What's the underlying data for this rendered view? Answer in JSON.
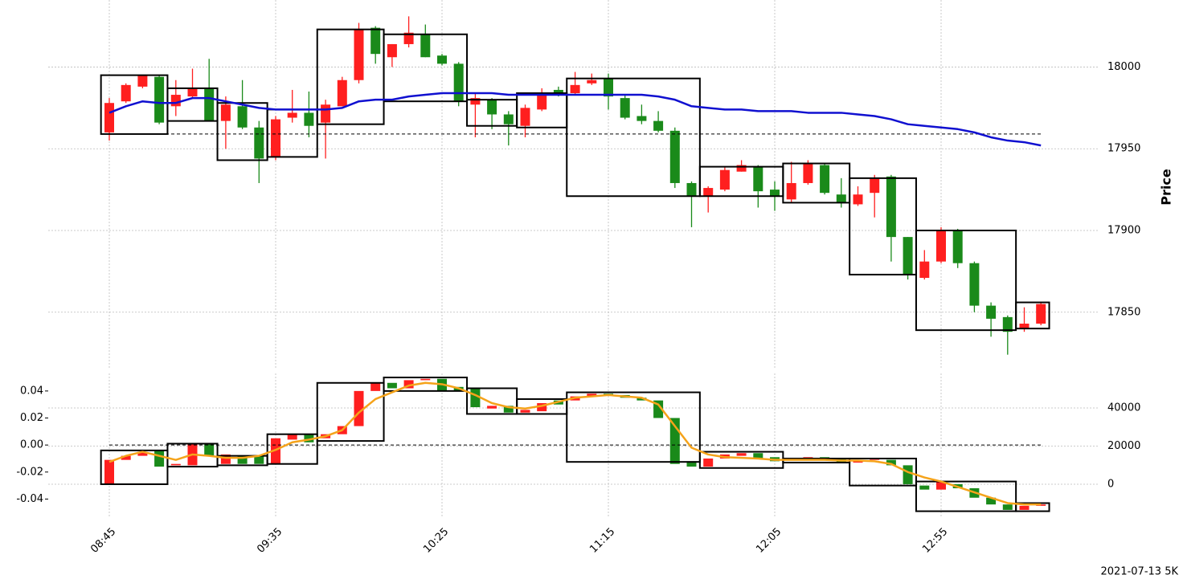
{
  "caption": "2021-07-13 5K",
  "chart_data": [
    {
      "type": "candlestick",
      "ylabel": "Price",
      "categories": [
        "08:45",
        null,
        null,
        null,
        null,
        null,
        null,
        null,
        null,
        null,
        "09:35",
        null,
        null,
        null,
        null,
        null,
        null,
        null,
        null,
        null,
        "10:25",
        null,
        null,
        null,
        null,
        null,
        null,
        null,
        null,
        null,
        "11:15",
        null,
        null,
        null,
        null,
        null,
        null,
        null,
        null,
        null,
        "12:05",
        null,
        null,
        null,
        null,
        null,
        null,
        null,
        null,
        null,
        "12:55",
        null,
        null,
        null,
        null,
        null,
        null
      ],
      "open": [
        17960,
        17979,
        17988,
        17994,
        17976,
        17982,
        17987,
        17967,
        17976,
        17963,
        17945,
        17969,
        17972,
        17966,
        17976,
        17992,
        18024,
        18006,
        18014,
        18020,
        18007,
        18002,
        17977,
        17980,
        17971,
        17964,
        17974,
        17986,
        17984,
        17990,
        17993,
        17981,
        17970,
        17967,
        17961,
        17929,
        17921,
        17925,
        17936,
        17939,
        17925,
        17919,
        17929,
        17940,
        17922,
        17916,
        17923,
        17933,
        17896,
        17871,
        17881,
        17900,
        17880,
        17854,
        17847,
        17840,
        17843
      ],
      "high": [
        17981,
        17990,
        17995,
        17995,
        17992,
        17999,
        18005,
        17982,
        17992,
        17967,
        17970,
        17986,
        17985,
        17980,
        17994,
        18027,
        18025,
        18014,
        18031,
        18026,
        18008,
        18003,
        17984,
        17981,
        17973,
        17977,
        17987,
        17988,
        17997,
        17996,
        17996,
        17983,
        17977,
        17973,
        17963,
        17930,
        17927,
        17939,
        17943,
        17940,
        17930,
        17942,
        17943,
        17941,
        17932,
        17927,
        17934,
        17934,
        17896,
        17888,
        17902,
        17901,
        17881,
        17856,
        17848,
        17853,
        17856
      ],
      "low": [
        17955,
        17978,
        17987,
        17965,
        17970,
        17981,
        17967,
        17950,
        17962,
        17929,
        17943,
        17966,
        17957,
        17944,
        17976,
        17990,
        18002,
        18000,
        18012,
        18006,
        18001,
        17976,
        17957,
        17962,
        17952,
        17957,
        17973,
        17982,
        17983,
        17989,
        17974,
        17968,
        17965,
        17960,
        17926,
        17902,
        17911,
        17924,
        17936,
        17914,
        17912,
        17917,
        17928,
        17922,
        17914,
        17915,
        17908,
        17881,
        17870,
        17870,
        17880,
        17877,
        17850,
        17835,
        17824,
        17838,
        17842
      ],
      "close": [
        17978,
        17989,
        17995,
        17966,
        17983,
        17987,
        17967,
        17977,
        17963,
        17944,
        17968,
        17972,
        17964,
        17977,
        17992,
        18023,
        18008,
        18014,
        18021,
        18006,
        18002,
        17979,
        17981,
        17971,
        17965,
        17975,
        17983,
        17983,
        17989,
        17992,
        17982,
        17969,
        17967,
        17961,
        17929,
        17921,
        17926,
        17937,
        17940,
        17924,
        17921,
        17929,
        17941,
        17923,
        17917,
        17922,
        17932,
        17896,
        17873,
        17881,
        17900,
        17880,
        17854,
        17846,
        17838,
        17843,
        17855
      ],
      "up_color": "#ff1f1f",
      "down_color": "#1a8a1a",
      "ma": {
        "color": "#1010d0",
        "values": [
          17972,
          17976,
          17979,
          17978,
          17978,
          17981,
          17981,
          17979,
          17977,
          17975,
          17974,
          17974,
          17974,
          17974,
          17975,
          17979,
          17980,
          17980,
          17982,
          17983,
          17984,
          17984,
          17984,
          17984,
          17983,
          17983,
          17983,
          17983,
          17983,
          17983,
          17983,
          17983,
          17983,
          17982,
          17980,
          17976,
          17975,
          17974,
          17974,
          17973,
          17973,
          17973,
          17972,
          17972,
          17972,
          17971,
          17970,
          17968,
          17965,
          17964,
          17963,
          17962,
          17960,
          17957,
          17955,
          17954,
          17952
        ]
      },
      "hline": 17959,
      "boxes": [
        {
          "start": 0,
          "end": 3,
          "high": 17995,
          "low": 17959
        },
        {
          "start": 4,
          "end": 6,
          "high": 17987,
          "low": 17967
        },
        {
          "start": 7,
          "end": 9,
          "high": 17978,
          "low": 17943
        },
        {
          "start": 10,
          "end": 12,
          "high": 17974,
          "low": 17945
        },
        {
          "start": 13,
          "end": 16,
          "high": 18023,
          "low": 17965
        },
        {
          "start": 17,
          "end": 21,
          "high": 18020,
          "low": 17979
        },
        {
          "start": 22,
          "end": 24,
          "high": 17980,
          "low": 17964
        },
        {
          "start": 25,
          "end": 27,
          "high": 17984,
          "low": 17963
        },
        {
          "start": 28,
          "end": 35,
          "high": 17993,
          "low": 17921
        },
        {
          "start": 36,
          "end": 40,
          "high": 17939,
          "low": 17921
        },
        {
          "start": 41,
          "end": 44,
          "high": 17941,
          "low": 17917
        },
        {
          "start": 45,
          "end": 48,
          "high": 17932,
          "low": 17873
        },
        {
          "start": 49,
          "end": 54,
          "high": 17900,
          "low": 17839
        },
        {
          "start": 55,
          "end": 56,
          "high": 17856,
          "low": 17840
        }
      ],
      "ylim": [
        17815,
        18041
      ],
      "yticks": [
        17850,
        17900,
        17950,
        18000
      ],
      "grid": true
    },
    {
      "type": "candlestick",
      "open": [
        -0.029,
        -0.011,
        -0.008,
        -0.004,
        -0.015,
        -0.015,
        0.001,
        -0.014,
        -0.008,
        -0.008,
        -0.014,
        0.004,
        0.008,
        0.005,
        0.008,
        0.014,
        0.04,
        0.046,
        0.042,
        0.048,
        0.049,
        0.043,
        0.042,
        0.027,
        0.029,
        0.024,
        0.025,
        0.033,
        0.033,
        0.036,
        0.038,
        0.037,
        0.035,
        0.033,
        0.02,
        -0.012,
        -0.016,
        -0.01,
        -0.008,
        -0.006,
        -0.009,
        -0.011,
        -0.011,
        -0.009,
        -0.01,
        -0.013,
        -0.011,
        -0.011,
        -0.015,
        -0.03,
        -0.033,
        -0.029,
        -0.032,
        -0.039,
        -0.044,
        -0.048,
        -0.045
      ],
      "close": [
        -0.011,
        -0.008,
        -0.005,
        -0.016,
        -0.014,
        0.001,
        -0.008,
        -0.007,
        -0.014,
        -0.014,
        0.005,
        0.008,
        0.002,
        0.008,
        0.014,
        0.04,
        0.046,
        0.042,
        0.048,
        0.049,
        0.04,
        0.04,
        0.028,
        0.029,
        0.024,
        0.026,
        0.031,
        0.03,
        0.036,
        0.038,
        0.037,
        0.035,
        0.033,
        0.02,
        -0.014,
        -0.016,
        -0.01,
        -0.007,
        -0.006,
        -0.01,
        -0.012,
        -0.01,
        -0.009,
        -0.011,
        -0.013,
        -0.011,
        -0.01,
        -0.015,
        -0.029,
        -0.033,
        -0.027,
        -0.032,
        -0.039,
        -0.044,
        -0.048,
        -0.045,
        -0.044
      ],
      "up_color": "#ff1f1f",
      "down_color": "#1a8a1a",
      "line": {
        "color": "#f5a31a",
        "values": [
          -0.0125,
          -0.008,
          -0.005,
          -0.008,
          -0.011,
          -0.007,
          -0.008,
          -0.0095,
          -0.0095,
          -0.008,
          -0.0036,
          0.002,
          0.004,
          0.0065,
          0.011,
          0.024,
          0.034,
          0.039,
          0.044,
          0.046,
          0.045,
          0.042,
          0.037,
          0.031,
          0.028,
          0.027,
          0.029,
          0.032,
          0.035,
          0.036,
          0.037,
          0.036,
          0.035,
          0.03,
          0.014,
          -0.002,
          -0.007,
          -0.009,
          -0.0095,
          -0.01,
          -0.011,
          -0.011,
          -0.011,
          -0.011,
          -0.0115,
          -0.0115,
          -0.012,
          -0.014,
          -0.02,
          -0.024,
          -0.027,
          -0.031,
          -0.035,
          -0.039,
          -0.043,
          -0.044,
          -0.044
        ]
      },
      "hline": 0,
      "boxes": [
        {
          "start": 0,
          "end": 3,
          "high": -0.004,
          "low": -0.029
        },
        {
          "start": 4,
          "end": 6,
          "high": 0.001,
          "low": -0.016
        },
        {
          "start": 7,
          "end": 9,
          "high": -0.008,
          "low": -0.015
        },
        {
          "start": 10,
          "end": 12,
          "high": 0.008,
          "low": -0.014
        },
        {
          "start": 13,
          "end": 16,
          "high": 0.046,
          "low": 0.003
        },
        {
          "start": 17,
          "end": 21,
          "high": 0.05,
          "low": 0.04
        },
        {
          "start": 22,
          "end": 24,
          "high": 0.042,
          "low": 0.023
        },
        {
          "start": 25,
          "end": 27,
          "high": 0.034,
          "low": 0.023
        },
        {
          "start": 28,
          "end": 35,
          "high": 0.039,
          "low": -0.0125
        },
        {
          "start": 36,
          "end": 40,
          "high": -0.005,
          "low": -0.017
        },
        {
          "start": 41,
          "end": 44,
          "high": -0.01,
          "low": -0.013
        },
        {
          "start": 45,
          "end": 48,
          "high": -0.01,
          "low": -0.03
        },
        {
          "start": 49,
          "end": 54,
          "high": -0.027,
          "low": -0.049
        },
        {
          "start": 55,
          "end": 56,
          "high": -0.043,
          "low": -0.049
        }
      ],
      "ylim": [
        -0.054,
        0.053
      ],
      "yticks": [
        -0.04,
        -0.02,
        {
          "value": 0,
          "label": "0.00"
        },
        0.02,
        0.04
      ],
      "y2lim": [
        -17680,
        58100
      ],
      "y2ticks": [
        0,
        20000,
        40000
      ],
      "grid": true
    }
  ]
}
